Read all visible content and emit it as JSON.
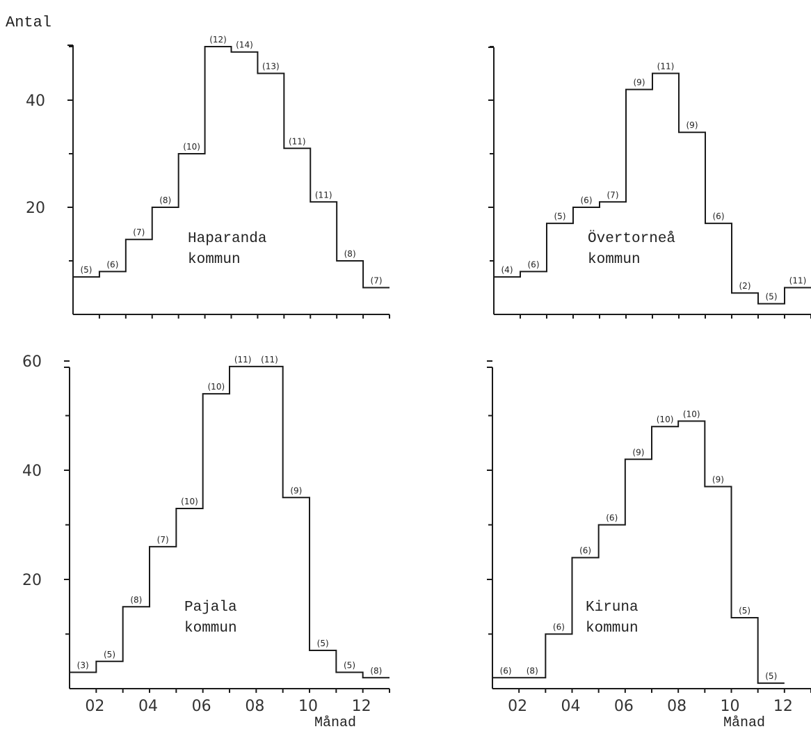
{
  "figure": {
    "ylabel": "Antal",
    "xlabel": "Månad"
  },
  "chart_data": [
    {
      "type": "line",
      "title": "Haparanda kommun",
      "title_lines": [
        "Haparanda",
        "kommun"
      ],
      "xlabel": "",
      "ylabel": "Antal",
      "x_ticklabels": [],
      "y_ticklabels": [
        "40",
        "20"
      ],
      "ylim": [
        0,
        50
      ],
      "xlim": [
        0.5,
        12.5
      ],
      "months": [
        1,
        2,
        3,
        4,
        5,
        6,
        7,
        8,
        9,
        10,
        11,
        12
      ],
      "values": [
        7,
        8,
        14,
        20,
        30,
        50,
        49,
        45,
        31,
        21,
        10,
        5
      ],
      "counts": [
        "(5)",
        "(6)",
        "(7)",
        "(8)",
        "(10)",
        "(12)",
        "(14)",
        "(13)",
        "(11)",
        "(11)",
        "(8)",
        "(7)"
      ]
    },
    {
      "type": "line",
      "title": "Övertorneå kommun",
      "title_lines": [
        "Övertorneå",
        "kommun"
      ],
      "xlabel": "",
      "ylabel": "Antal",
      "x_ticklabels": [],
      "y_ticklabels": [],
      "ylim": [
        0,
        50
      ],
      "xlim": [
        0.5,
        12.5
      ],
      "months": [
        1,
        2,
        3,
        4,
        5,
        6,
        7,
        8,
        9,
        10,
        11,
        12
      ],
      "values": [
        7,
        8,
        17,
        20,
        21,
        42,
        45,
        34,
        17,
        4,
        2,
        5
      ],
      "counts": [
        "(4)",
        "(6)",
        "(5)",
        "(6)",
        "(7)",
        "(9)",
        "(11)",
        "(9)",
        "(6)",
        "(2)",
        "(5)",
        "(11)"
      ]
    },
    {
      "type": "line",
      "title": "Pajala kommun",
      "title_lines": [
        "Pajala",
        "kommun"
      ],
      "xlabel": "Månad",
      "ylabel": "",
      "x_ticklabels": [
        "02",
        "04",
        "06",
        "08",
        "10",
        "12"
      ],
      "y_ticklabels": [
        "60",
        "40",
        "20"
      ],
      "ylim": [
        0,
        60
      ],
      "xlim": [
        0.5,
        12.5
      ],
      "months": [
        1,
        2,
        3,
        4,
        5,
        6,
        7,
        8,
        9,
        10,
        11,
        12
      ],
      "values": [
        3,
        5,
        15,
        26,
        33,
        54,
        59,
        59,
        35,
        7,
        3,
        2
      ],
      "counts": [
        "(3)",
        "(5)",
        "(8)",
        "(7)",
        "(10)",
        "(10)",
        "(11)",
        "(11)",
        "(9)",
        "(5)",
        "(5)",
        "(8)"
      ]
    },
    {
      "type": "line",
      "title": "Kiruna kommun",
      "title_lines": [
        "Kiruna",
        "kommun"
      ],
      "xlabel": "Månad",
      "ylabel": "",
      "x_ticklabels": [
        "02",
        "04",
        "06",
        "08",
        "10",
        "12"
      ],
      "y_ticklabels": [],
      "ylim": [
        0,
        60
      ],
      "xlim": [
        0.5,
        12.5
      ],
      "months": [
        1,
        2,
        3,
        4,
        5,
        6,
        7,
        8,
        9,
        10,
        11
      ],
      "values": [
        2,
        2,
        10,
        24,
        30,
        42,
        48,
        49,
        37,
        13,
        1
      ],
      "counts": [
        "(6)",
        "(8)",
        "(6)",
        "(6)",
        "(6)",
        "(9)",
        "(10)",
        "(10)",
        "(9)",
        "(5)",
        "(5)"
      ]
    }
  ]
}
